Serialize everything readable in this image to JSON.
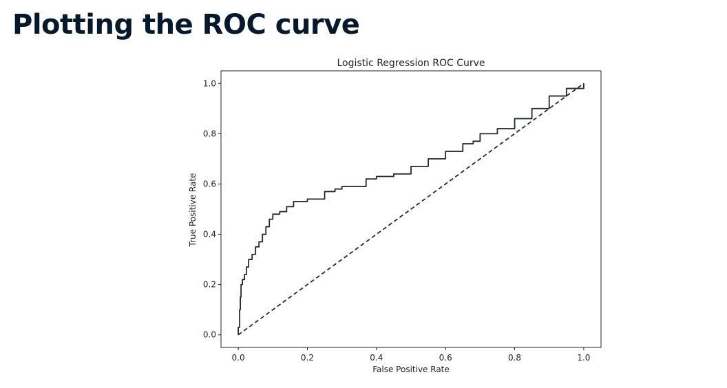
{
  "slide": {
    "title": "Plotting the ROC curve"
  },
  "chart_data": {
    "type": "line",
    "title": "Logistic Regression ROC Curve",
    "xlabel": "False Positive Rate",
    "ylabel": "True Positive Rate",
    "xlim": [
      -0.05,
      1.05
    ],
    "ylim": [
      -0.05,
      1.05
    ],
    "xticks": [
      0.0,
      0.2,
      0.4,
      0.6,
      0.8,
      1.0
    ],
    "yticks": [
      0.0,
      0.2,
      0.4,
      0.6,
      0.8,
      1.0
    ],
    "xtick_labels": [
      "0.0",
      "0.2",
      "0.4",
      "0.6",
      "0.8",
      "1.0"
    ],
    "ytick_labels": [
      "0.0",
      "0.2",
      "0.4",
      "0.6",
      "0.8",
      "1.0"
    ],
    "grid": false,
    "series": [
      {
        "style": "solid",
        "color": "#1f2a36",
        "x": [
          0.0,
          0.0,
          0.004,
          0.006,
          0.008,
          0.012,
          0.018,
          0.024,
          0.03,
          0.04,
          0.05,
          0.06,
          0.07,
          0.08,
          0.09,
          0.1,
          0.11,
          0.12,
          0.14,
          0.16,
          0.18,
          0.2,
          0.22,
          0.25,
          0.28,
          0.3,
          0.35,
          0.37,
          0.4,
          0.45,
          0.5,
          0.55,
          0.6,
          0.65,
          0.68,
          0.7,
          0.75,
          0.8,
          0.85,
          0.9,
          0.95,
          1.0
        ],
        "y": [
          0.0,
          0.03,
          0.1,
          0.15,
          0.2,
          0.22,
          0.24,
          0.27,
          0.3,
          0.32,
          0.35,
          0.37,
          0.4,
          0.43,
          0.46,
          0.48,
          0.48,
          0.49,
          0.51,
          0.53,
          0.53,
          0.54,
          0.54,
          0.57,
          0.58,
          0.59,
          0.59,
          0.62,
          0.63,
          0.64,
          0.67,
          0.7,
          0.73,
          0.76,
          0.77,
          0.8,
          0.82,
          0.86,
          0.9,
          0.95,
          0.98,
          1.0
        ]
      },
      {
        "style": "dashed",
        "color": "#1f2a36",
        "x": [
          0.0,
          1.0
        ],
        "y": [
          0.0,
          1.0
        ]
      }
    ]
  }
}
